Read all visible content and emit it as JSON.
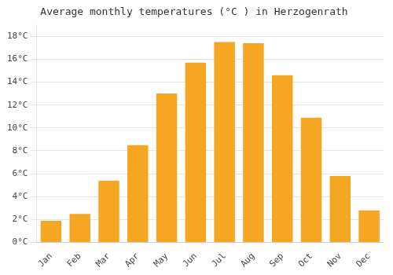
{
  "chart_data": {
    "type": "bar",
    "title": "Average monthly temperatures (°C ) in Herzogenrath",
    "categories": [
      "Jan",
      "Feb",
      "Mar",
      "Apr",
      "May",
      "Jun",
      "Jul",
      "Aug",
      "Sep",
      "Oct",
      "Nov",
      "Dec"
    ],
    "values": [
      1.9,
      2.5,
      5.4,
      8.5,
      13.0,
      15.7,
      17.5,
      17.4,
      14.6,
      10.9,
      5.8,
      2.8
    ],
    "color": "#F5A623",
    "ylim": [
      0,
      19
    ],
    "yticks": [
      {
        "value": 0,
        "label": "0°C"
      },
      {
        "value": 2,
        "label": "2°C"
      },
      {
        "value": 4,
        "label": "4°C"
      },
      {
        "value": 6,
        "label": "6°C"
      },
      {
        "value": 8,
        "label": "8°C"
      },
      {
        "value": 10,
        "label": "10°C"
      },
      {
        "value": 12,
        "label": "12°C"
      },
      {
        "value": 14,
        "label": "14°C"
      },
      {
        "value": 16,
        "label": "16°C"
      },
      {
        "value": 18,
        "label": "18°C"
      }
    ],
    "grid": true
  }
}
